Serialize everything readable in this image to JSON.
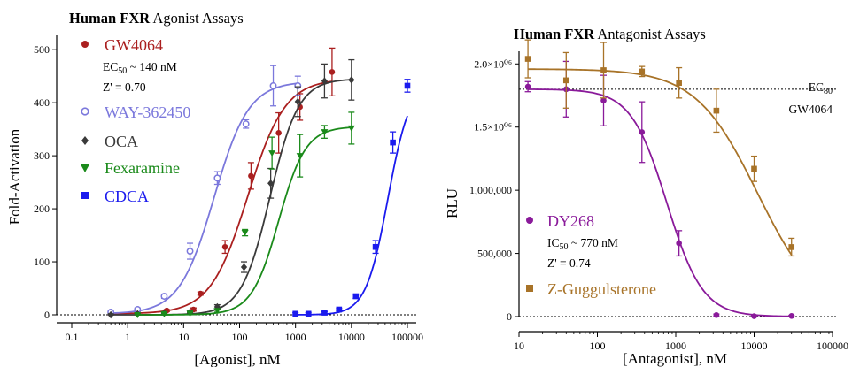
{
  "chart_data": [
    {
      "type": "scatter",
      "title_bold": "Human FXR",
      "title_rest": " Agonist Assays",
      "xlabel": "[Agonist], nM",
      "ylabel": "Fold-Activation",
      "x_scale": "log",
      "xlim": [
        0.1,
        100000
      ],
      "ylim": [
        0,
        520
      ],
      "x_ticks": [
        0.1,
        1,
        10,
        100,
        1000,
        10000,
        100000
      ],
      "x_tick_labels": [
        "0.1",
        "1",
        "10",
        "100",
        "1000",
        "10000",
        "100000"
      ],
      "y_ticks": [
        0,
        100,
        200,
        300,
        400,
        500
      ],
      "y_tick_labels": [
        "0",
        "100",
        "200",
        "300",
        "400",
        "500"
      ],
      "baseline": 0,
      "ec50_text": "EC",
      "ec50_sub": "50",
      "ec50_value": " ~ 140 nM",
      "zprime_text": "Z' = 0.70",
      "series": [
        {
          "name": "GW4064",
          "color": "#aa1f1f",
          "marker": "circle",
          "curve": {
            "bottom": 2,
            "top": 445,
            "ec50": 140,
            "hill": 1.3
          },
          "points": [
            {
              "x": 0.5,
              "y": 2,
              "err": 3
            },
            {
              "x": 1.5,
              "y": 3,
              "err": 2
            },
            {
              "x": 5,
              "y": 8,
              "err": 2
            },
            {
              "x": 15,
              "y": 10,
              "err": 3
            },
            {
              "x": 20,
              "y": 40,
              "err": 3
            },
            {
              "x": 55,
              "y": 128,
              "err": 12
            },
            {
              "x": 160,
              "y": 262,
              "err": 25
            },
            {
              "x": 500,
              "y": 343,
              "err": 38
            },
            {
              "x": 1200,
              "y": 392,
              "err": 25
            },
            {
              "x": 4500,
              "y": 458,
              "err": 45
            }
          ]
        },
        {
          "name": "WAY-362450",
          "color": "#7b78dc",
          "marker": "open-circle",
          "curve": {
            "bottom": 2,
            "top": 440,
            "ec50": 35,
            "hill": 1.4
          },
          "points": [
            {
              "x": 0.5,
              "y": 5,
              "err": 3
            },
            {
              "x": 1.5,
              "y": 10,
              "err": 3
            },
            {
              "x": 4.5,
              "y": 35,
              "err": 4
            },
            {
              "x": 13,
              "y": 120,
              "err": 15
            },
            {
              "x": 40,
              "y": 258,
              "err": 12
            },
            {
              "x": 130,
              "y": 360,
              "err": 8
            },
            {
              "x": 400,
              "y": 432,
              "err": 38
            },
            {
              "x": 1100,
              "y": 432,
              "err": 18
            }
          ]
        },
        {
          "name": "OCA",
          "color": "#3a3a3a",
          "marker": "diamond",
          "curve": {
            "bottom": 0,
            "top": 445,
            "ec50": 350,
            "hill": 1.7
          },
          "points": [
            {
              "x": 0.5,
              "y": 0,
              "err": 2
            },
            {
              "x": 1.5,
              "y": 2,
              "err": 2
            },
            {
              "x": 4.5,
              "y": 3,
              "err": 2
            },
            {
              "x": 13,
              "y": 5,
              "err": 2
            },
            {
              "x": 40,
              "y": 15,
              "err": 4
            },
            {
              "x": 120,
              "y": 90,
              "err": 10
            },
            {
              "x": 360,
              "y": 248,
              "err": 28
            },
            {
              "x": 1100,
              "y": 402,
              "err": 28
            },
            {
              "x": 3300,
              "y": 441,
              "err": 32
            },
            {
              "x": 10000,
              "y": 443,
              "err": 38
            }
          ]
        },
        {
          "name": "Fexaramine",
          "color": "#1a8a1a",
          "marker": "triangle-down",
          "curve": {
            "bottom": 0,
            "top": 355,
            "ec50": 500,
            "hill": 1.8
          },
          "points": [
            {
              "x": 1.5,
              "y": 0,
              "err": 2
            },
            {
              "x": 4.5,
              "y": 2,
              "err": 2
            },
            {
              "x": 13,
              "y": 3,
              "err": 2
            },
            {
              "x": 40,
              "y": 8,
              "err": 3
            },
            {
              "x": 125,
              "y": 155,
              "err": 6
            },
            {
              "x": 380,
              "y": 305,
              "err": 30
            },
            {
              "x": 1200,
              "y": 300,
              "err": 40
            },
            {
              "x": 3300,
              "y": 345,
              "err": 12
            },
            {
              "x": 10000,
              "y": 352,
              "err": 30
            }
          ]
        },
        {
          "name": "CDCA",
          "color": "#1a1aee",
          "marker": "square",
          "curve": {
            "bottom": 0,
            "top": 440,
            "ec50": 45000,
            "hill": 2.2
          },
          "points": [
            {
              "x": 1000,
              "y": 2,
              "err": 2
            },
            {
              "x": 1700,
              "y": 2,
              "err": 2
            },
            {
              "x": 3300,
              "y": 4,
              "err": 2
            },
            {
              "x": 6000,
              "y": 10,
              "err": 2
            },
            {
              "x": 12000,
              "y": 35,
              "err": 4
            },
            {
              "x": 27000,
              "y": 128,
              "err": 12
            },
            {
              "x": 55000,
              "y": 325,
              "err": 20
            },
            {
              "x": 100000,
              "y": 432,
              "err": 12
            }
          ]
        }
      ]
    },
    {
      "type": "scatter",
      "title_bold": "Human FXR",
      "title_rest": " Antagonist Assays",
      "xlabel": "[Antagonist], nM",
      "ylabel": "RLU",
      "x_scale": "log",
      "xlim": [
        10,
        100000
      ],
      "ylim": [
        0,
        2100000
      ],
      "x_ticks": [
        10,
        100,
        1000,
        10000,
        100000
      ],
      "x_tick_labels": [
        "10",
        "100",
        "1000",
        "10000",
        "100000"
      ],
      "y_ticks": [
        0,
        500000,
        1000000,
        1500000,
        2000000
      ],
      "y_tick_labels": [
        "0",
        "500,000",
        "1,000,000",
        "1.5×10⁰⁶",
        "2.0×10⁰⁶"
      ],
      "baseline": 0,
      "reference_line": 1800000,
      "reference_label_top": "EC",
      "reference_label_sub": "80",
      "reference_label_bottom": "GW4064",
      "ic50_text": "IC",
      "ic50_sub": "50",
      "ic50_value": " ~ 770 nM",
      "zprime_text": "Z' = 0.74",
      "series": [
        {
          "name": "DY268",
          "color": "#8a1a9a",
          "marker": "circle",
          "curve": {
            "bottom": 0,
            "top": 1800000,
            "ec50": 770,
            "hill": -1.9
          },
          "points": [
            {
              "x": 13,
              "y": 1820000,
              "err": 40000
            },
            {
              "x": 40,
              "y": 1800000,
              "err": 220000
            },
            {
              "x": 120,
              "y": 1710000,
              "err": 200000
            },
            {
              "x": 370,
              "y": 1460000,
              "err": 240000
            },
            {
              "x": 1100,
              "y": 580000,
              "err": 100000
            },
            {
              "x": 3300,
              "y": 12000,
              "err": 8000
            },
            {
              "x": 10000,
              "y": 3000,
              "err": 5000
            },
            {
              "x": 30000,
              "y": 5000,
              "err": 5000
            }
          ]
        },
        {
          "name": "Z-Guggulsterone",
          "color": "#a87328",
          "marker": "square",
          "curve": {
            "bottom": 0,
            "top": 1960000,
            "ec50": 11000,
            "hill": -1.1
          },
          "points": [
            {
              "x": 13,
              "y": 2040000,
              "err": 150000
            },
            {
              "x": 40,
              "y": 1870000,
              "err": 220000
            },
            {
              "x": 120,
              "y": 1950000,
              "err": 220000
            },
            {
              "x": 370,
              "y": 1940000,
              "err": 40000
            },
            {
              "x": 1100,
              "y": 1850000,
              "err": 120000
            },
            {
              "x": 3300,
              "y": 1630000,
              "err": 170000
            },
            {
              "x": 10000,
              "y": 1170000,
              "err": 100000
            },
            {
              "x": 30000,
              "y": 550000,
              "err": 70000
            }
          ]
        }
      ]
    }
  ]
}
